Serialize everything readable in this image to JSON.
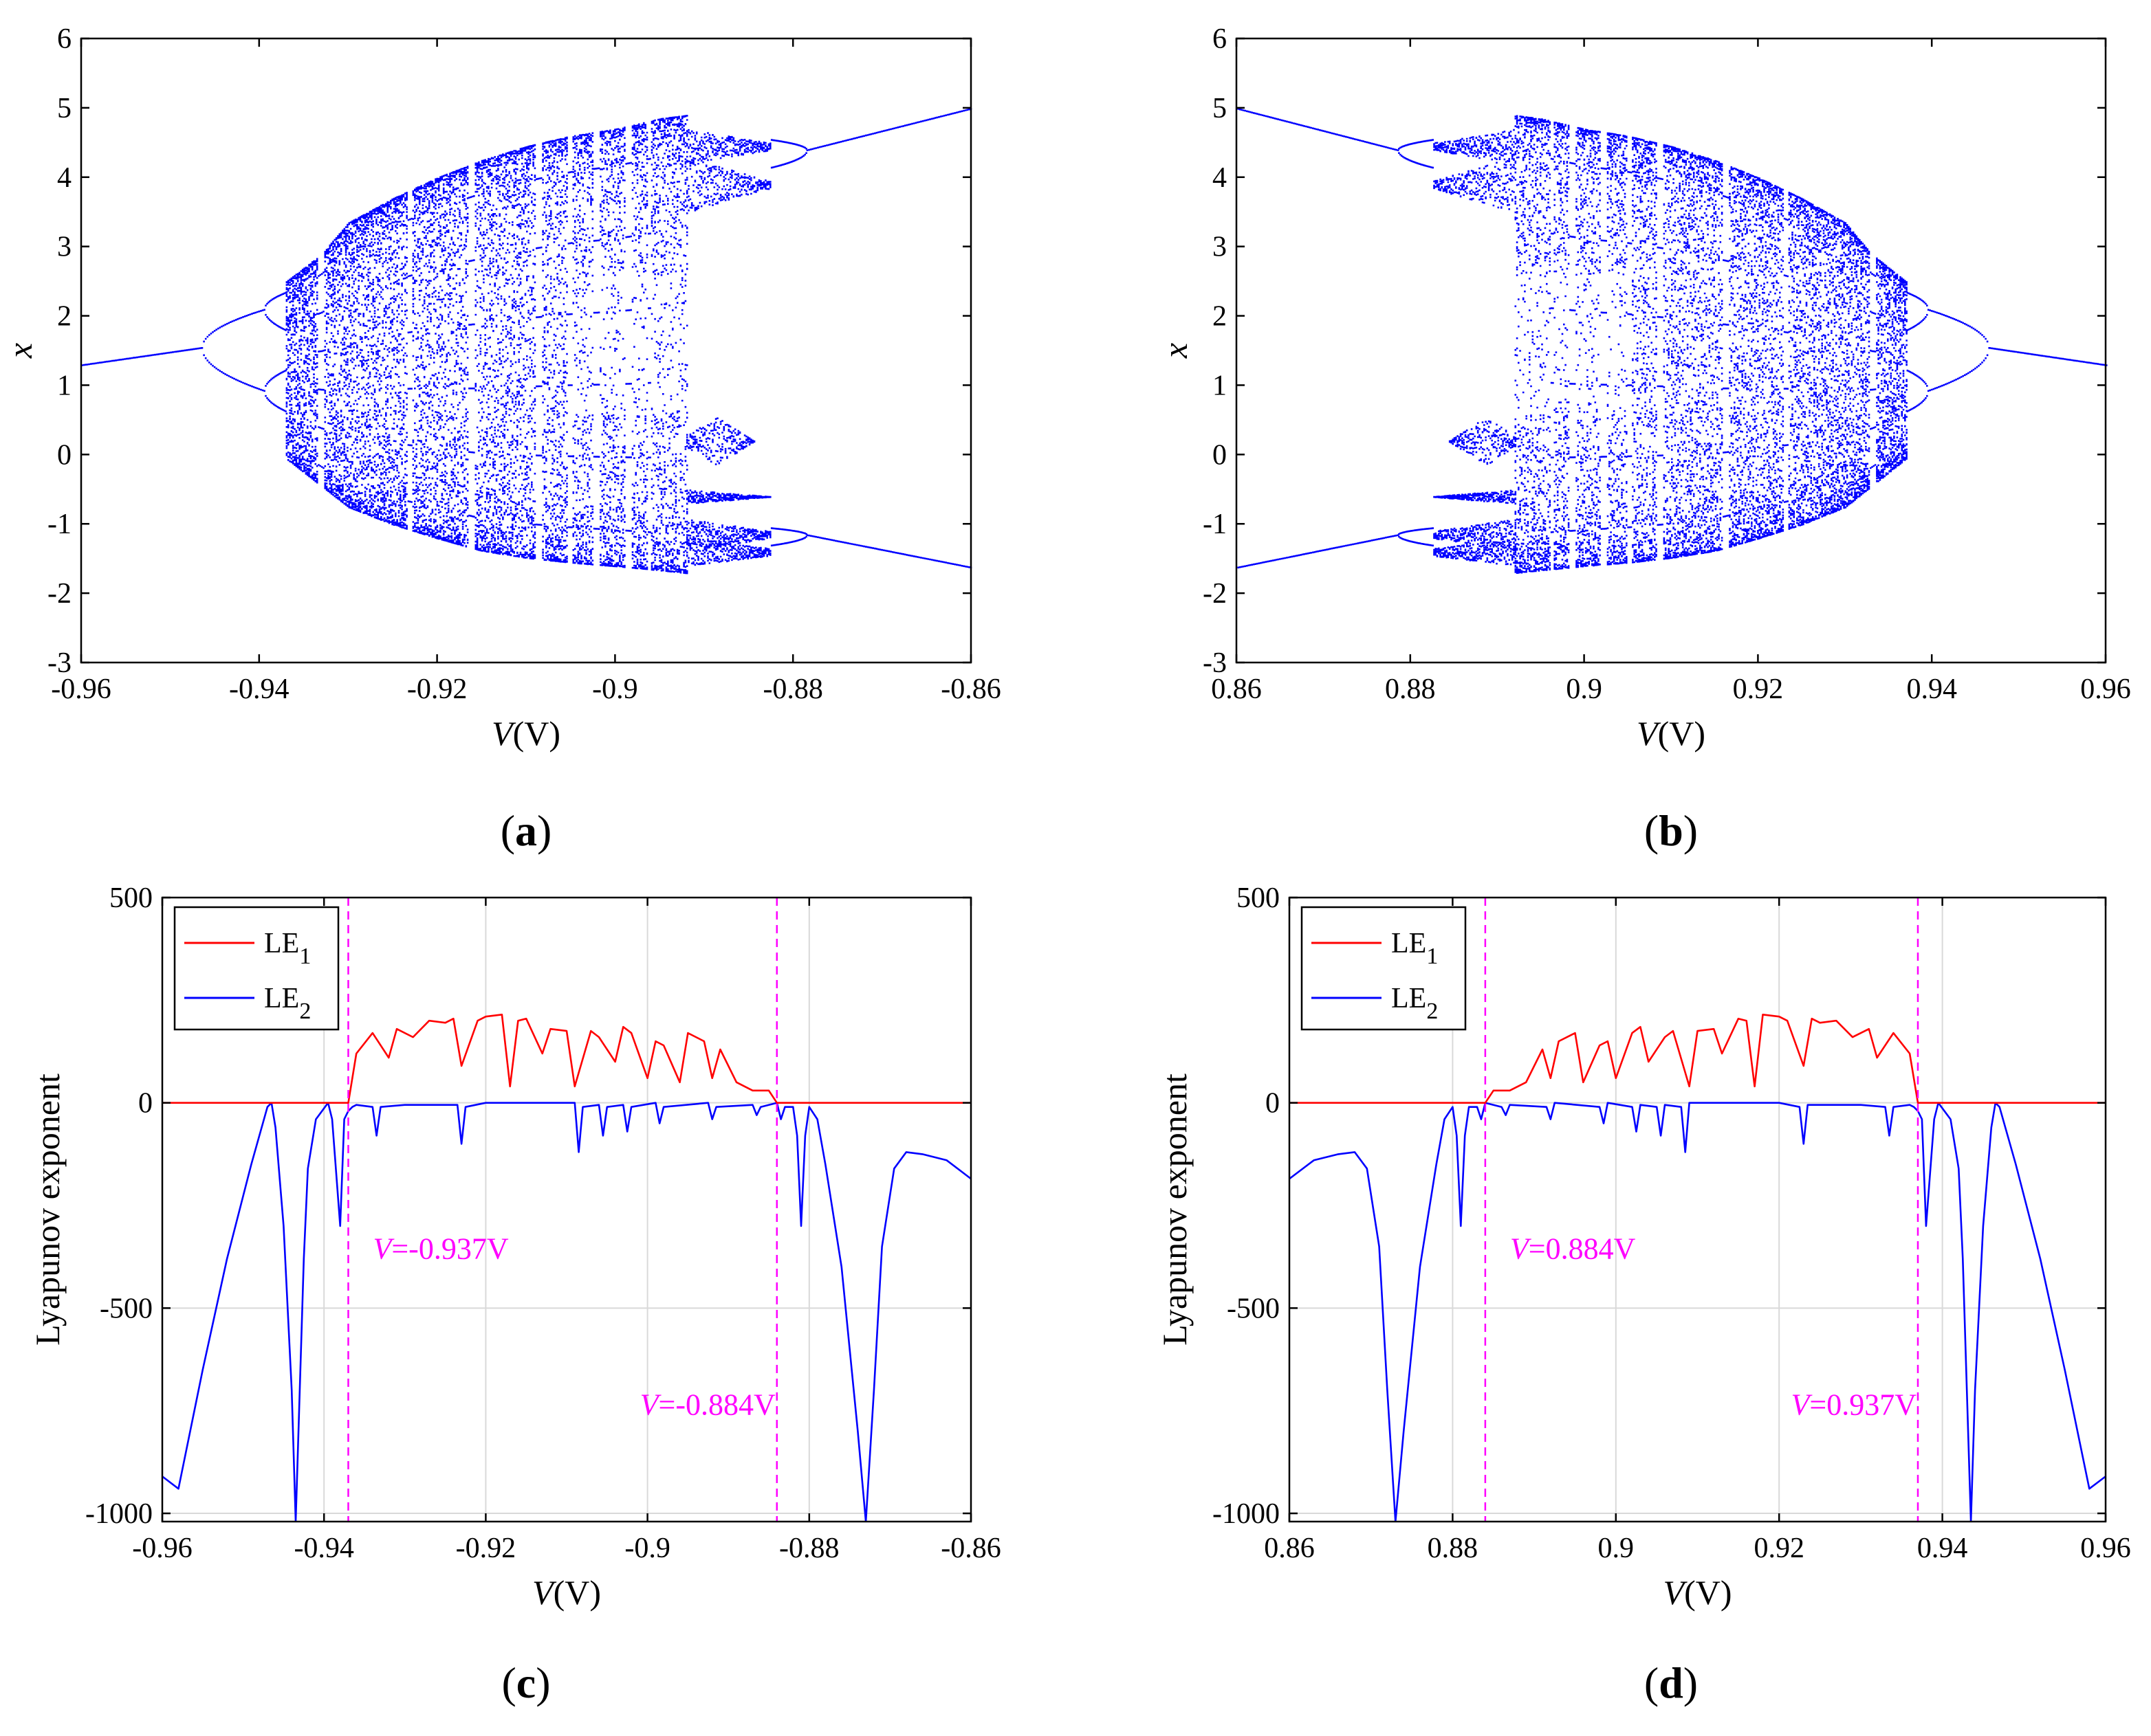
{
  "colors": {
    "blue": "#0000ff",
    "red": "#ff0000",
    "magenta": "#ff00ff",
    "grid": "#d9d9d9"
  },
  "chart_data": [
    {
      "id": "a",
      "type": "scatter",
      "panel_label": "a",
      "title": "",
      "xlabel_italic": "V",
      "xlabel_unit": "(V)",
      "ylabel": "x",
      "xlim": [
        -0.96,
        -0.86
      ],
      "ylim": [
        -3,
        6
      ],
      "xticks": [
        "-0.96",
        "-0.94",
        "-0.92",
        "-0.9",
        "-0.88",
        "-0.86"
      ],
      "yticks": [
        "-3",
        "-2",
        "-1",
        "0",
        "1",
        "2",
        "3",
        "4",
        "5",
        "6"
      ],
      "grid": false,
      "mirror": false,
      "description_points": {
        "period1_left": [
          [
            -0.96,
            1.3
          ],
          [
            -0.947,
            1.55
          ]
        ],
        "period1_right": [
          [
            -0.878,
            4.4
          ],
          [
            -0.86,
            5.0
          ],
          [
            -0.878,
            -1.15
          ],
          [
            -0.86,
            -1.62
          ]
        ],
        "chaos_range": [
          -0.937,
          -0.892
        ],
        "chaos_envelope_top": [
          [
            -0.937,
            2.6
          ],
          [
            -0.93,
            3.4
          ],
          [
            -0.92,
            4.0
          ],
          [
            -0.91,
            4.4
          ],
          [
            -0.9,
            4.7
          ],
          [
            -0.892,
            4.9
          ]
        ],
        "chaos_envelope_bottom": [
          [
            -0.937,
            -0.1
          ],
          [
            -0.93,
            -0.7
          ],
          [
            -0.92,
            -1.2
          ],
          [
            -0.91,
            -1.45
          ],
          [
            -0.9,
            -1.6
          ],
          [
            -0.892,
            -1.7
          ]
        ]
      }
    },
    {
      "id": "b",
      "type": "scatter",
      "panel_label": "b",
      "title": "",
      "xlabel_italic": "V",
      "xlabel_unit": "(V)",
      "ylabel": "x",
      "xlim": [
        0.86,
        0.96
      ],
      "ylim": [
        -3,
        6
      ],
      "xticks": [
        "0.86",
        "0.88",
        "0.9",
        "0.92",
        "0.94",
        "0.96"
      ],
      "yticks": [
        "-3",
        "-2",
        "-1",
        "0",
        "1",
        "2",
        "3",
        "4",
        "5",
        "6"
      ],
      "grid": false,
      "mirror": true,
      "description_points": {
        "period1_left": [
          [
            0.86,
            5.0
          ],
          [
            0.878,
            4.4
          ],
          [
            0.86,
            -1.62
          ],
          [
            0.878,
            -1.15
          ]
        ],
        "period1_right": [
          [
            0.947,
            1.55
          ],
          [
            0.96,
            1.3
          ]
        ],
        "chaos_range": [
          0.892,
          0.937
        ]
      }
    },
    {
      "id": "c",
      "type": "line",
      "panel_label": "c",
      "title": "",
      "xlabel_italic": "V",
      "xlabel_unit": "(V)",
      "ylabel": "Lyapunov exponent",
      "xlim": [
        -0.96,
        -0.86
      ],
      "ylim": [
        -1020,
        500
      ],
      "xticks": [
        "-0.96",
        "-0.94",
        "-0.92",
        "-0.9",
        "-0.88",
        "-0.86"
      ],
      "yticks": [
        "-1000",
        "-500",
        "0",
        "500"
      ],
      "ytick_values": [
        -1000,
        -500,
        0,
        500
      ],
      "grid": true,
      "mirror": false,
      "legend": [
        {
          "label": "LE",
          "sub": "1",
          "color": "#ff0000"
        },
        {
          "label": "LE",
          "sub": "2",
          "color": "#0000ff"
        }
      ],
      "legend_position": "top-left",
      "annotations": [
        {
          "x": -0.937,
          "italic": "V",
          "text": "=-0.937V",
          "y_text": -380
        },
        {
          "x": -0.884,
          "italic": "V",
          "text": "=-0.884V",
          "y_text": -760
        }
      ],
      "series": [
        {
          "name": "LE1",
          "color": "#ff0000",
          "x": [
            -0.96,
            -0.937,
            -0.936,
            -0.934,
            -0.932,
            -0.931,
            -0.929,
            -0.927,
            -0.925,
            -0.924,
            -0.923,
            -0.921,
            -0.92,
            -0.918,
            -0.917,
            -0.916,
            -0.915,
            -0.913,
            -0.912,
            -0.91,
            -0.909,
            -0.907,
            -0.906,
            -0.904,
            -0.903,
            -0.902,
            -0.9,
            -0.899,
            -0.898,
            -0.896,
            -0.895,
            -0.893,
            -0.892,
            -0.891,
            -0.889,
            -0.887,
            -0.885,
            -0.884,
            -0.86
          ],
          "y": [
            0,
            0,
            120,
            170,
            110,
            180,
            160,
            200,
            195,
            205,
            90,
            200,
            210,
            215,
            40,
            200,
            205,
            120,
            180,
            175,
            40,
            175,
            160,
            100,
            185,
            170,
            60,
            150,
            140,
            50,
            170,
            150,
            60,
            130,
            50,
            30,
            30,
            0,
            0
          ]
        },
        {
          "name": "LE2",
          "color": "#0000ff",
          "x": [
            -0.96,
            -0.958,
            -0.955,
            -0.952,
            -0.949,
            -0.947,
            -0.9465,
            -0.946,
            -0.945,
            -0.944,
            -0.9435,
            -0.943,
            -0.9425,
            -0.942,
            -0.941,
            -0.9395,
            -0.939,
            -0.938,
            -0.9375,
            -0.937,
            -0.9365,
            -0.936,
            -0.934,
            -0.9335,
            -0.933,
            -0.93,
            -0.9235,
            -0.923,
            -0.9225,
            -0.92,
            -0.909,
            -0.9085,
            -0.908,
            -0.906,
            -0.9055,
            -0.905,
            -0.903,
            -0.9025,
            -0.902,
            -0.899,
            -0.8985,
            -0.898,
            -0.8925,
            -0.892,
            -0.8915,
            -0.887,
            -0.8865,
            -0.886,
            -0.884,
            -0.8835,
            -0.883,
            -0.882,
            -0.8815,
            -0.881,
            -0.8805,
            -0.88,
            -0.879,
            -0.878,
            -0.876,
            -0.874,
            -0.873,
            -0.872,
            -0.871,
            -0.8695,
            -0.868,
            -0.866,
            -0.863,
            -0.86
          ],
          "y": [
            -910,
            -940,
            -650,
            -380,
            -150,
            -10,
            0,
            -60,
            -300,
            -700,
            -1020,
            -700,
            -380,
            -160,
            -40,
            0,
            -40,
            -300,
            -40,
            -20,
            -10,
            -5,
            -10,
            -80,
            -10,
            -5,
            -5,
            -100,
            -10,
            0,
            0,
            -120,
            -10,
            -5,
            -80,
            -10,
            -5,
            -70,
            -10,
            0,
            -50,
            -10,
            0,
            -40,
            -10,
            -5,
            -30,
            -10,
            0,
            -40,
            -10,
            -10,
            -80,
            -300,
            -80,
            -10,
            -40,
            -150,
            -400,
            -800,
            -1020,
            -700,
            -350,
            -160,
            -120,
            -125,
            -140,
            -185
          ]
        }
      ]
    },
    {
      "id": "d",
      "type": "line",
      "panel_label": "d",
      "title": "",
      "xlabel_italic": "V",
      "xlabel_unit": "(V)",
      "ylabel": "Lyapunov exponent",
      "xlim": [
        0.86,
        0.96
      ],
      "ylim": [
        -1020,
        500
      ],
      "xticks": [
        "0.86",
        "0.88",
        "0.9",
        "0.92",
        "0.94",
        "0.96"
      ],
      "yticks": [
        "-1000",
        "-500",
        "0",
        "500"
      ],
      "ytick_values": [
        -1000,
        -500,
        0,
        500
      ],
      "grid": true,
      "mirror": true,
      "legend": [
        {
          "label": "LE",
          "sub": "1",
          "color": "#ff0000"
        },
        {
          "label": "LE",
          "sub": "2",
          "color": "#0000ff"
        }
      ],
      "legend_position": "top-left",
      "annotations": [
        {
          "x": 0.884,
          "italic": "V",
          "text": "=0.884V",
          "y_text": -380
        },
        {
          "x": 0.937,
          "italic": "V",
          "text": "=0.937V",
          "y_text": -760
        }
      ],
      "series_note": "mirror of panel c (x negated)"
    }
  ]
}
